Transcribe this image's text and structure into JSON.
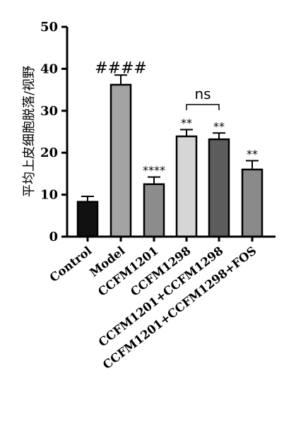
{
  "chart_data": {
    "type": "bar",
    "title": "",
    "xlabel": "",
    "ylabel": "平均上皮细胞脱落/视野",
    "ylim": [
      0,
      50
    ],
    "yticks": [
      "0",
      "10",
      "20",
      "30",
      "40",
      "50"
    ],
    "categories": [
      "Control",
      "Model",
      "CCFM1201",
      "CCFM1298",
      "CCFM1201+CCFM1298",
      "CCFM1201+CCFM1298+FOS"
    ],
    "values": [
      8.3,
      36.2,
      12.5,
      23.9,
      23.2,
      16.0
    ],
    "errors": [
      1.3,
      2.3,
      1.7,
      1.6,
      1.5,
      2.1
    ],
    "colors": [
      "#111111",
      "#a3a3a3",
      "#8c8c8c",
      "#d6d6d6",
      "#5c5c5c",
      "#8a8a8a"
    ],
    "annotations": [
      "",
      "####",
      "****",
      "**",
      "**",
      "**"
    ],
    "comparison": {
      "from": 3,
      "to": 4,
      "label": "ns"
    },
    "grid": false,
    "legend": "none"
  }
}
